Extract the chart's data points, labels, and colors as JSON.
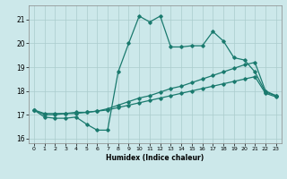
{
  "xlabel": "Humidex (Indice chaleur)",
  "xlim": [
    -0.5,
    23.5
  ],
  "ylim": [
    15.8,
    21.6
  ],
  "yticks": [
    16,
    17,
    18,
    19,
    20,
    21
  ],
  "xticks": [
    0,
    1,
    2,
    3,
    4,
    5,
    6,
    7,
    8,
    9,
    10,
    11,
    12,
    13,
    14,
    15,
    16,
    17,
    18,
    19,
    20,
    21,
    22,
    23
  ],
  "bg_color": "#cce8ea",
  "grid_color": "#aacccc",
  "line_color": "#1a7a6e",
  "series1": {
    "x": [
      0,
      1,
      2,
      3,
      4,
      5,
      6,
      7,
      8,
      9,
      10,
      11,
      12,
      13,
      14,
      15,
      16,
      17,
      18,
      19,
      20,
      21,
      22,
      23
    ],
    "y": [
      17.2,
      16.9,
      16.85,
      16.85,
      16.9,
      16.6,
      16.35,
      16.35,
      18.8,
      20.0,
      21.15,
      20.9,
      21.15,
      19.85,
      19.85,
      19.9,
      19.9,
      20.5,
      20.1,
      19.4,
      19.3,
      18.8,
      17.95,
      17.8
    ]
  },
  "series2": {
    "x": [
      0,
      1,
      2,
      3,
      4,
      5,
      6,
      7,
      8,
      9,
      10,
      11,
      12,
      13,
      14,
      15,
      16,
      17,
      18,
      19,
      20,
      21,
      22,
      23
    ],
    "y": [
      17.2,
      17.05,
      17.05,
      17.05,
      17.1,
      17.1,
      17.15,
      17.25,
      17.4,
      17.55,
      17.7,
      17.8,
      17.95,
      18.1,
      18.2,
      18.35,
      18.5,
      18.65,
      18.8,
      18.95,
      19.1,
      19.2,
      18.0,
      17.8
    ]
  },
  "series3": {
    "x": [
      0,
      1,
      2,
      3,
      4,
      5,
      6,
      7,
      8,
      9,
      10,
      11,
      12,
      13,
      14,
      15,
      16,
      17,
      18,
      19,
      20,
      21,
      22,
      23
    ],
    "y": [
      17.2,
      17.0,
      17.0,
      17.05,
      17.05,
      17.1,
      17.15,
      17.2,
      17.3,
      17.4,
      17.5,
      17.6,
      17.7,
      17.8,
      17.9,
      18.0,
      18.1,
      18.2,
      18.3,
      18.4,
      18.5,
      18.6,
      17.9,
      17.75
    ]
  }
}
